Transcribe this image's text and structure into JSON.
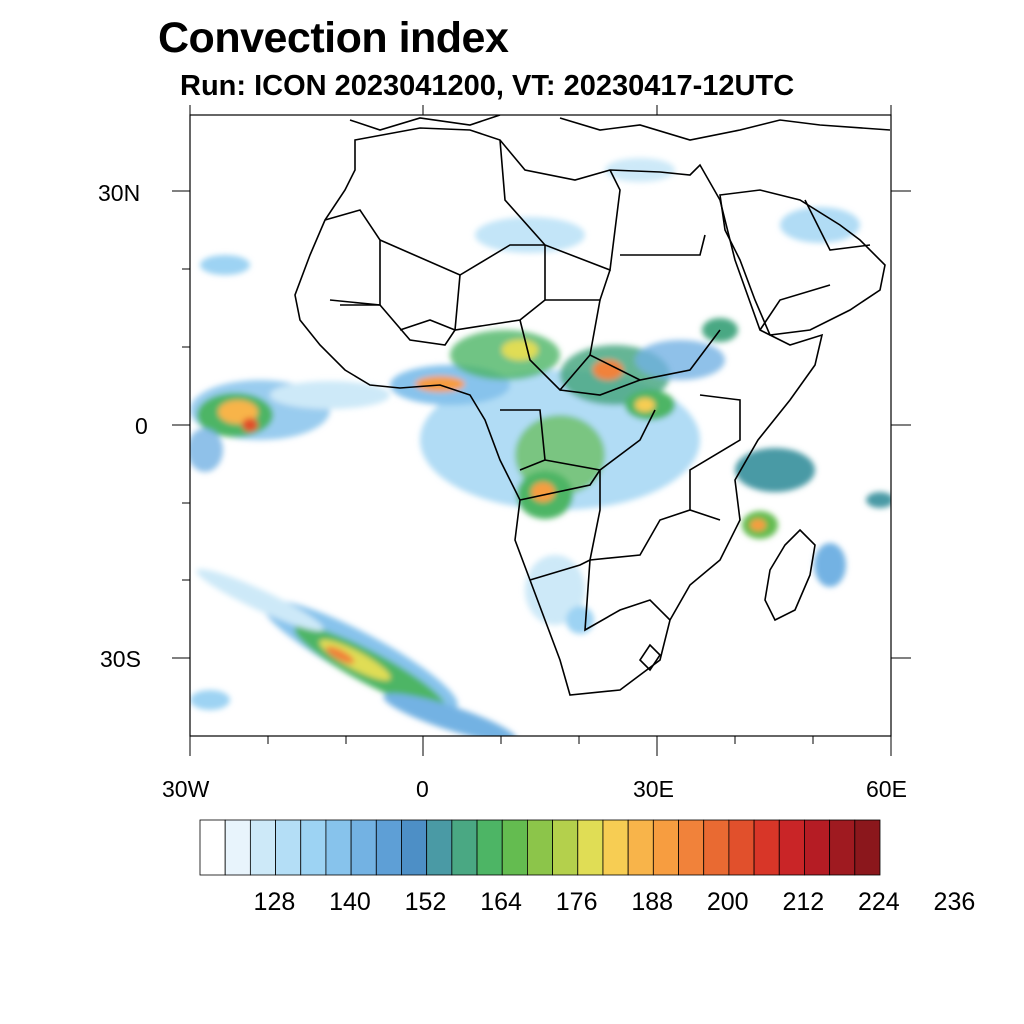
{
  "title": "Convection index",
  "subtitle": "Run: ICON 2023041200,  VT: 20230417-12UTC",
  "map": {
    "lon_range": [
      -30,
      60
    ],
    "lat_range": [
      -40,
      40
    ],
    "lon_ticks": [
      "30W",
      "0",
      "30E",
      "60E"
    ],
    "lat_ticks": [
      "30N",
      "0",
      "30S"
    ],
    "field": "Convection index"
  },
  "colorbar": {
    "labels": [
      "128",
      "140",
      "152",
      "164",
      "176",
      "188",
      "200",
      "212",
      "224",
      "236"
    ],
    "colors": [
      "#ffffff",
      "#e8f4fc",
      "#cde9f8",
      "#b4def6",
      "#9dd3f3",
      "#87c3ec",
      "#73b2e3",
      "#5e9fd6",
      "#4d8fc6",
      "#4a9aa5",
      "#4aa883",
      "#4db565",
      "#64bc50",
      "#8cc54a",
      "#b4d04c",
      "#e0dd55",
      "#f7cd53",
      "#f8b44a",
      "#f79d40",
      "#f1823a",
      "#e96a32",
      "#e1502c",
      "#d83628",
      "#c92527",
      "#b51c24",
      "#9f1a20",
      "#8b171c"
    ]
  }
}
